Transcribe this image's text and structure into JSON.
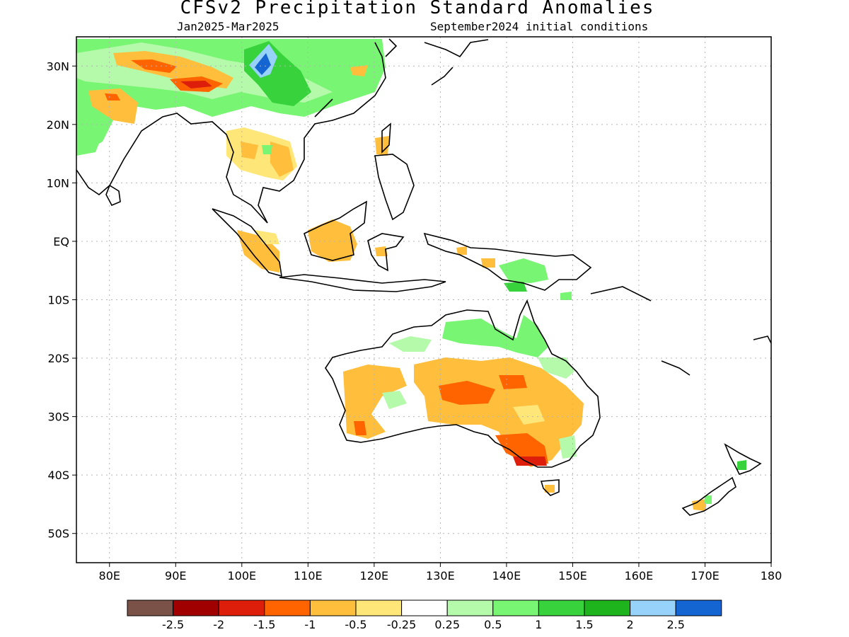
{
  "title": "CFSv2 Precipitation Standard Anomalies",
  "subtitle_left": "Jan2025-Mar2025",
  "subtitle_right": "September2024 initial conditions",
  "map": {
    "lon_range": [
      75,
      180
    ],
    "lat_range": [
      -55,
      35
    ],
    "lat_ticks": [
      {
        "value": 30,
        "label": "30N"
      },
      {
        "value": 20,
        "label": "20N"
      },
      {
        "value": 10,
        "label": "10N"
      },
      {
        "value": 0,
        "label": "EQ"
      },
      {
        "value": -10,
        "label": "10S"
      },
      {
        "value": -20,
        "label": "20S"
      },
      {
        "value": -30,
        "label": "30S"
      },
      {
        "value": -40,
        "label": "40S"
      },
      {
        "value": -50,
        "label": "50S"
      }
    ],
    "lon_ticks": [
      {
        "value": 80,
        "label": "80E"
      },
      {
        "value": 90,
        "label": "90E"
      },
      {
        "value": 100,
        "label": "100E"
      },
      {
        "value": 110,
        "label": "110E"
      },
      {
        "value": 120,
        "label": "120E"
      },
      {
        "value": 130,
        "label": "130E"
      },
      {
        "value": 140,
        "label": "140E"
      },
      {
        "value": 150,
        "label": "150E"
      },
      {
        "value": 160,
        "label": "160E"
      },
      {
        "value": 170,
        "label": "170E"
      },
      {
        "value": 180,
        "label": "180"
      }
    ],
    "gridlines": true
  },
  "legend": {
    "colors": [
      "#7a5247",
      "#a00000",
      "#dc1e0a",
      "#ff6400",
      "#ffbe3c",
      "#ffe678",
      "#ffffff",
      "#b4faaa",
      "#78f572",
      "#37d23c",
      "#1eb41e",
      "#96d2fa",
      "#1464d2"
    ],
    "labels": [
      "-2.5",
      "-2",
      "-1.5",
      "-1",
      "-0.5",
      "-0.25",
      "0.25",
      "0.5",
      "1",
      "1.5",
      "2",
      "2.5"
    ]
  }
}
